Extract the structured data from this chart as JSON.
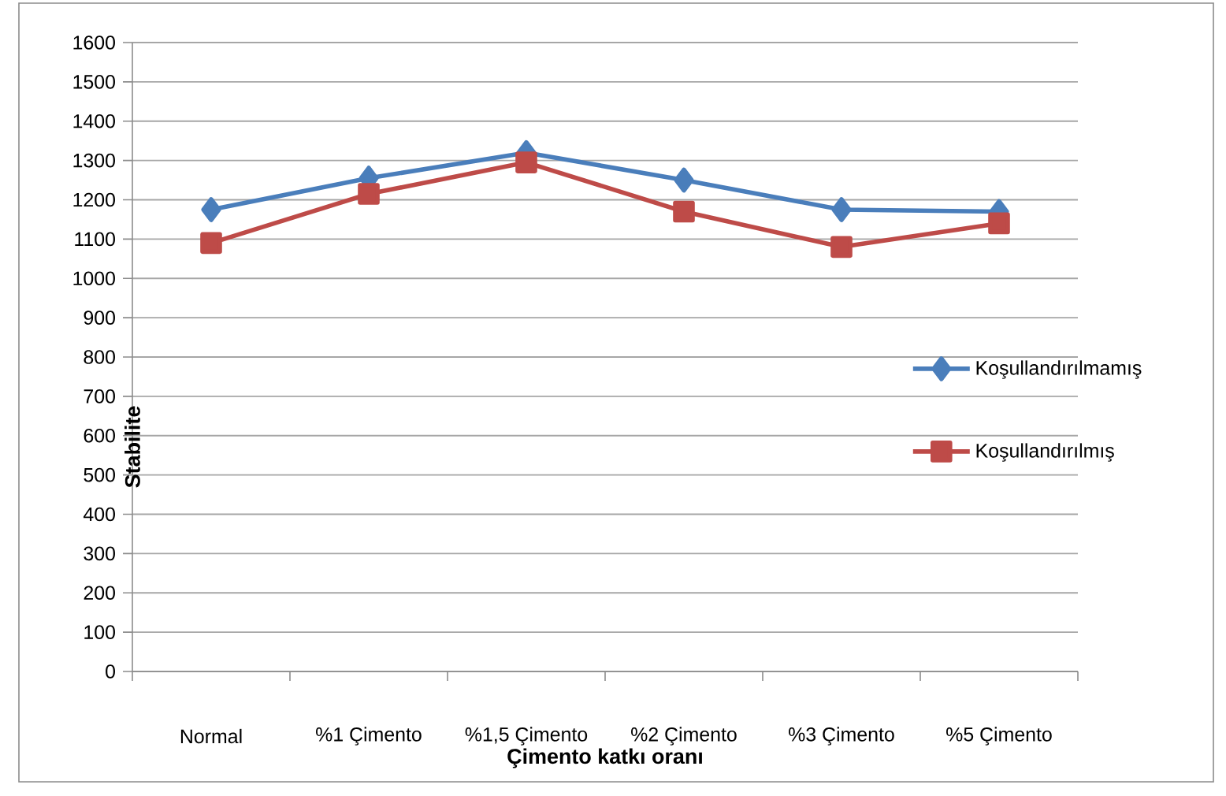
{
  "chart_data": {
    "type": "line",
    "xlabel": "Çimento katkı oranı",
    "ylabel": "Stabilite",
    "categories": [
      "Normal",
      "%1 Çimento",
      "%1,5 Çimento",
      "%2 Çimento",
      "%3 Çimento",
      "%5 Çimento"
    ],
    "series": [
      {
        "name": "Koşullandırılmamış",
        "color": "#4a7ebb",
        "marker": "diamond",
        "values": [
          1175,
          1255,
          1320,
          1250,
          1175,
          1170
        ]
      },
      {
        "name": "Koşullandırılmış",
        "color": "#be4b48",
        "marker": "square",
        "values": [
          1090,
          1215,
          1295,
          1170,
          1080,
          1140
        ]
      }
    ],
    "ylim": [
      0,
      1600
    ],
    "yticks": [
      0,
      100,
      200,
      300,
      400,
      500,
      600,
      700,
      800,
      900,
      1000,
      1100,
      1200,
      1300,
      1400,
      1500,
      1600
    ],
    "grid": "y",
    "legend": "right"
  }
}
